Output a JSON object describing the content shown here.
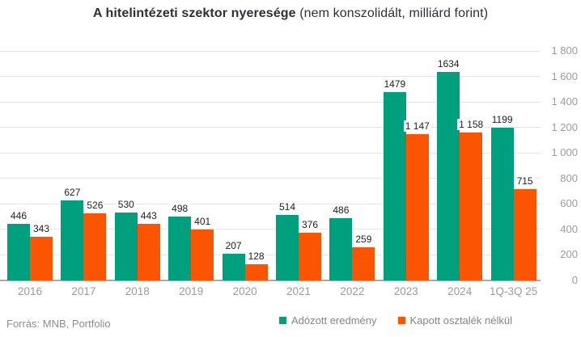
{
  "title": {
    "bold": "A hitelintézeti szektor nyeresége",
    "regular": " (nem konszolidált, milliárd forint)"
  },
  "footer": {
    "source": "Forrás: MNB, Portfolio"
  },
  "colors": {
    "green": "#00a07e",
    "orange": "#fb5503",
    "grid": "#e5e5e7",
    "axis": "#a9a9ab",
    "tick_text": "#9b9ba1",
    "value_text": "#212126",
    "title_text": "#2f2f38",
    "footer_text": "#8c8c92"
  },
  "legend": {
    "items": [
      {
        "label": "Adózott eredmény",
        "color_key": "green"
      },
      {
        "label": "Kapott osztalék nélkül",
        "color_key": "orange"
      }
    ]
  },
  "chart_data": {
    "type": "bar",
    "title": "A hitelintézeti szektor nyeresége (nem konszolidált, milliárd forint)",
    "categories": [
      "2016",
      "2017",
      "2018",
      "2019",
      "2020",
      "2021",
      "2022",
      "2023",
      "2024",
      "1Q-3Q 25"
    ],
    "series": [
      {
        "name": "Adózott eredmény",
        "color_key": "green",
        "values": [
          446,
          627,
          530,
          498,
          207,
          514,
          486,
          1479,
          1634,
          1199
        ],
        "value_labels": [
          "446",
          "627",
          "530",
          "498",
          "207",
          "514",
          "486",
          "1479",
          "1634",
          "1199"
        ]
      },
      {
        "name": "Kapott osztalék nélkül",
        "color_key": "orange",
        "values": [
          343,
          526,
          443,
          401,
          128,
          376,
          259,
          1147,
          1158,
          715
        ],
        "value_labels": [
          "343",
          "526",
          "443",
          "401",
          "128",
          "376",
          "259",
          "1 147",
          "1 158",
          "715"
        ]
      }
    ],
    "xlabel": "",
    "ylabel": "",
    "ylim": [
      0,
      1800
    ],
    "ytick_step": 200,
    "ytick_labels": [
      "0",
      "200",
      "400",
      "600",
      "800",
      "1 000",
      "1 200",
      "1 400",
      "1 600",
      "1 800"
    ],
    "grid": true,
    "y_axis_side": "right",
    "legend_position": "bottom",
    "value_labels_shown": true
  }
}
